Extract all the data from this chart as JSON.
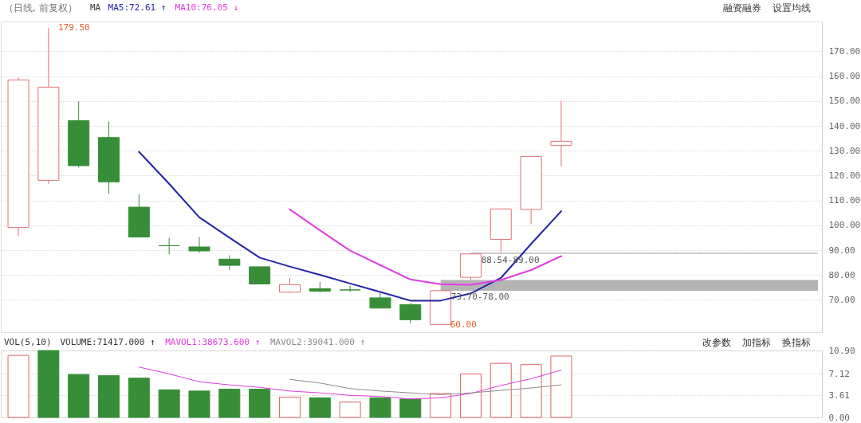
{
  "chart_data": [
    {
      "type": "candlestick",
      "title": "（日线, 前复权）",
      "legend_title": "MA",
      "tick_labels": "y",
      "grid": "y",
      "categories": [
        null,
        null,
        null,
        null,
        null,
        null,
        null,
        null,
        null,
        null,
        null,
        null,
        null,
        null,
        null,
        null,
        null,
        null,
        null
      ],
      "ohlc": [
        [
          99.1,
          159.5,
          95.7,
          158.5
        ],
        [
          118.1,
          179.5,
          116.7,
          155.6
        ],
        [
          142.1,
          149.9,
          123.2,
          124.0
        ],
        [
          135.3,
          141.8,
          112.7,
          117.5
        ],
        [
          107.3,
          112.5,
          95.3,
          95.3
        ],
        [
          91.8,
          95.0,
          88.4,
          91.8
        ],
        [
          91.3,
          95.3,
          88.9,
          89.7
        ],
        [
          86.4,
          87.9,
          82.0,
          83.9
        ],
        [
          83.3,
          83.3,
          76.4,
          76.4
        ],
        [
          73.1,
          78.8,
          72.7,
          76.1
        ],
        [
          74.5,
          77.2,
          73.0,
          73.5
        ],
        [
          74.0,
          75.6,
          73.1,
          74.0
        ],
        [
          70.8,
          72.7,
          66.7,
          66.7
        ],
        [
          68.1,
          68.8,
          60.6,
          62.0
        ],
        [
          60.0,
          73.7,
          60.0,
          73.7
        ],
        [
          79.1,
          88.5,
          78.0,
          88.5
        ],
        [
          94.3,
          106.6,
          89.0,
          106.6
        ],
        [
          106.4,
          127.7,
          100.5,
          127.7
        ],
        [
          132.1,
          150.1,
          123.7,
          133.8
        ]
      ],
      "colors": [
        "#e07272",
        "#e07272",
        "#388e38",
        "#388e38",
        "#388e38",
        "#388e38",
        "#388e38",
        "#388e38",
        "#388e38",
        "#e07272",
        "#388e38",
        "#388e38",
        "#388e38",
        "#388e38",
        "#e07272",
        "#e07272",
        "#e07272",
        "#e07272",
        "#e07272"
      ],
      "series": [
        {
          "name": "MA5:72.61 ↑",
          "type": "line",
          "color": "#2323a6",
          "values": [
            null,
            null,
            null,
            null,
            129.6,
            116.7,
            103.2,
            95.0,
            87.0,
            83.4,
            80.1,
            76.6,
            73.2,
            69.7,
            69.7,
            72.6,
            78.8,
            92.5,
            105.7
          ]
        },
        {
          "name": "MA10:76.05 ↓",
          "type": "line",
          "color": "#e23de2",
          "values": [
            null,
            null,
            null,
            null,
            null,
            null,
            null,
            null,
            null,
            106.4,
            98.0,
            89.8,
            84.0,
            78.2,
            76.3,
            76.1,
            78.0,
            82.0,
            87.6
          ]
        }
      ],
      "ylim": [
        57,
        182
      ],
      "yticks": [
        {
          "value": 70,
          "label": "70.00"
        },
        {
          "value": 80,
          "label": "80.00"
        },
        {
          "value": 90,
          "label": "90.00"
        },
        {
          "value": 100,
          "label": "100.00"
        },
        {
          "value": 110,
          "label": "110.00"
        },
        {
          "value": 120,
          "label": "120.00"
        },
        {
          "value": 130,
          "label": "130.00"
        },
        {
          "value": 140,
          "label": "140.00"
        },
        {
          "value": 150,
          "label": "150.00"
        },
        {
          "value": 160,
          "label": "160.00"
        },
        {
          "value": 170,
          "label": "170.00"
        }
      ],
      "bands": [
        {
          "axis": "y",
          "from": 73.7,
          "to": 78.0,
          "label": "73.70-78.00",
          "color": "#b4b4b4"
        },
        {
          "axis": "y",
          "from": 88.54,
          "to": 89.0,
          "label": "88.54-89.00",
          "color": "#acacac"
        }
      ],
      "annotations": [
        "融资融券",
        "设置均线",
        "179.50",
        "60.00"
      ]
    },
    {
      "type": "bar",
      "legend_title": "VOL(5,10)",
      "tick_labels": "y",
      "grid": "y",
      "categories": [
        null,
        null,
        null,
        null,
        null,
        null,
        null,
        null,
        null,
        null,
        null,
        null,
        null,
        null,
        null,
        null,
        null,
        null,
        null
      ],
      "series": [
        {
          "name": "VOLUME:71417.000 ↑",
          "type": "bar",
          "colors": [
            "#e06464",
            "#388e38",
            "#388e38",
            "#388e38",
            "#388e38",
            "#388e38",
            "#388e38",
            "#388e38",
            "#388e38",
            "#e06464",
            "#388e38",
            "#e06464",
            "#388e38",
            "#388e38",
            "#e06464",
            "#e06464",
            "#e06464",
            "#e06464",
            "#e06464"
          ],
          "values": [
            10.1,
            10.9,
            7.0,
            6.8,
            6.4,
            4.5,
            4.3,
            4.6,
            4.6,
            3.3,
            3.2,
            2.5,
            3.2,
            3.0,
            3.9,
            7.1,
            8.8,
            8.6,
            10.0
          ]
        },
        {
          "name": "MAVOL1:38673.600 ↑",
          "type": "line",
          "color": "#e03ce0",
          "values": [
            null,
            null,
            null,
            null,
            8.2,
            7.1,
            5.8,
            5.3,
            4.9,
            4.3,
            4.0,
            3.6,
            3.4,
            3.0,
            3.2,
            3.9,
            5.2,
            6.3,
            7.7
          ]
        },
        {
          "name": "MAVOL2:39041.000 ↑",
          "type": "line",
          "color": "#8c8c8c",
          "values": [
            null,
            null,
            null,
            null,
            null,
            null,
            null,
            null,
            null,
            6.2,
            5.6,
            4.7,
            4.3,
            4.0,
            3.7,
            4.0,
            4.4,
            4.8,
            5.3
          ]
        }
      ],
      "ylim": [
        0,
        10.9
      ],
      "yticks": [
        {
          "value": 0,
          "label": "0.00"
        },
        {
          "value": 3.61,
          "label": "3.61"
        },
        {
          "value": 7.12,
          "label": "7.12"
        },
        {
          "value": 10.9,
          "label": "10.90"
        }
      ],
      "annotations": [
        "改参数",
        "加指标",
        "换指标"
      ]
    }
  ]
}
